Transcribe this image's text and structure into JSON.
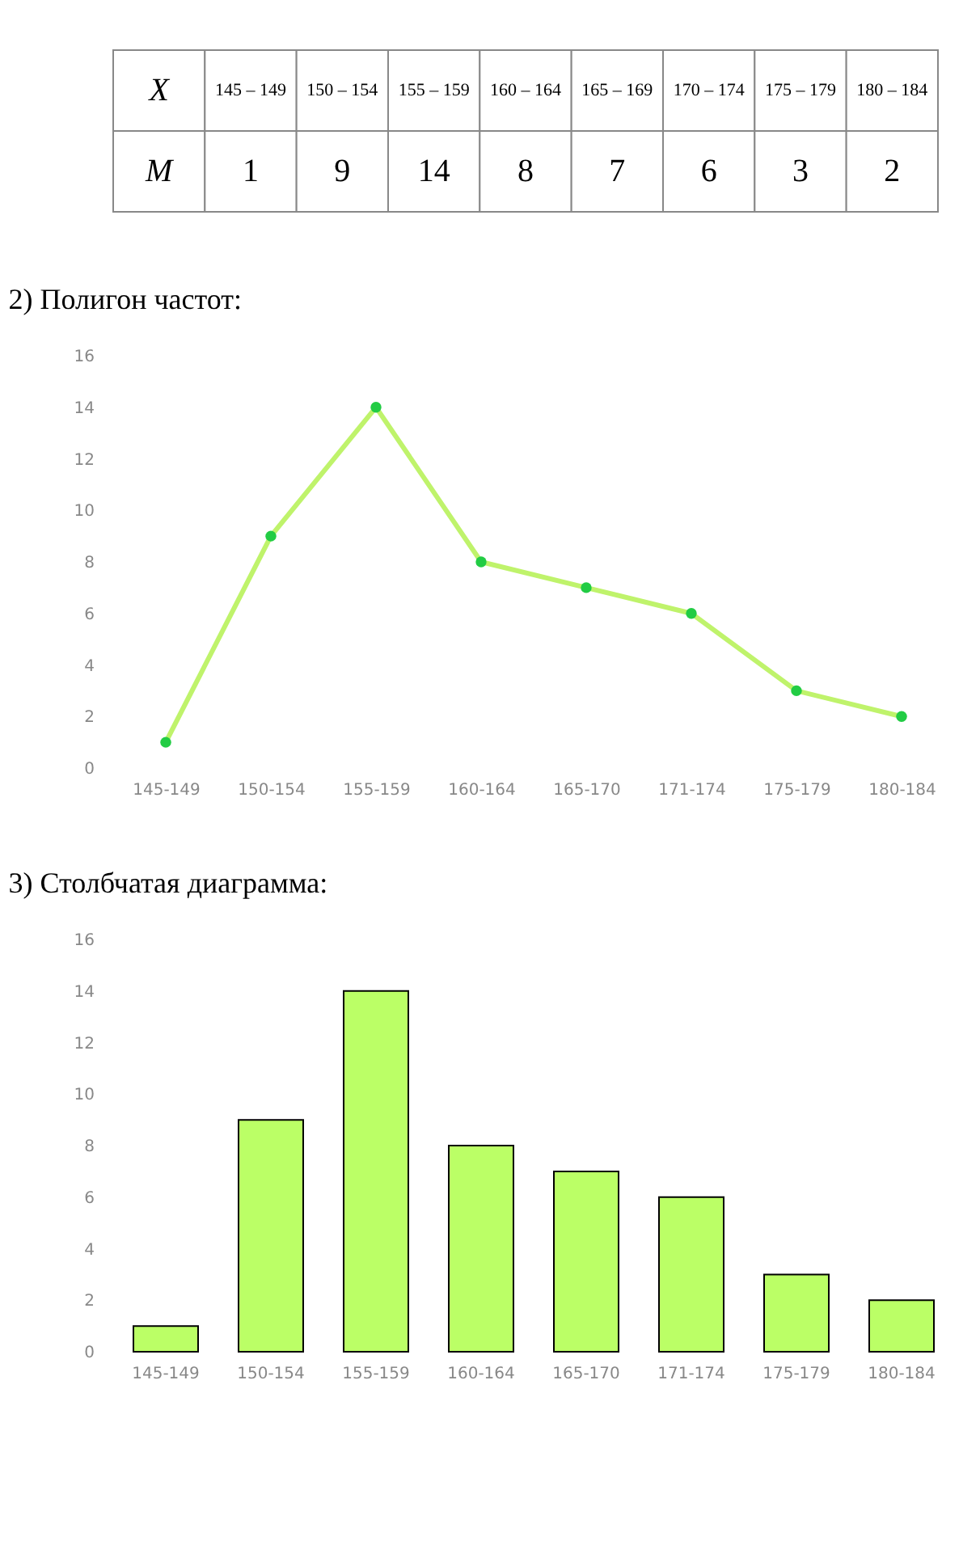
{
  "chart_data": [
    {
      "type": "other",
      "xlabel": "X",
      "ylabel": "M",
      "categories": [
        "145 – 149",
        "150 – 154",
        "155 – 159",
        "160 – 164",
        "165 – 169",
        "170 – 174",
        "175 – 179",
        "180 – 184"
      ],
      "values": [
        1,
        9,
        14,
        8,
        7,
        6,
        3,
        2
      ],
      "data_labels": true
    },
    {
      "type": "line",
      "title": "2) Полигон частот:",
      "categories": [
        "145-149",
        "150-154",
        "155-159",
        "160-164",
        "165-170",
        "171-174",
        "175-179",
        "180-184"
      ],
      "values": [
        1,
        9,
        14,
        8,
        7,
        6,
        3,
        2
      ],
      "color": "#bff36b",
      "marker": "circle",
      "ylim": [
        0,
        16
      ],
      "yticks": [
        0,
        2,
        4,
        6,
        8,
        10,
        12,
        14,
        16
      ],
      "grid": false
    },
    {
      "type": "bar",
      "title": "3) Столбчатая диаграмма:",
      "categories": [
        "145-149",
        "150-154",
        "155-159",
        "160-164",
        "165-170",
        "171-174",
        "175-179",
        "180-184"
      ],
      "values": [
        1,
        9,
        14,
        8,
        7,
        6,
        3,
        2
      ],
      "color": "#bbff66",
      "ylim": [
        0,
        16
      ],
      "yticks": [
        0,
        2,
        4,
        6,
        8,
        10,
        12,
        14,
        16
      ],
      "grid": false
    }
  ]
}
